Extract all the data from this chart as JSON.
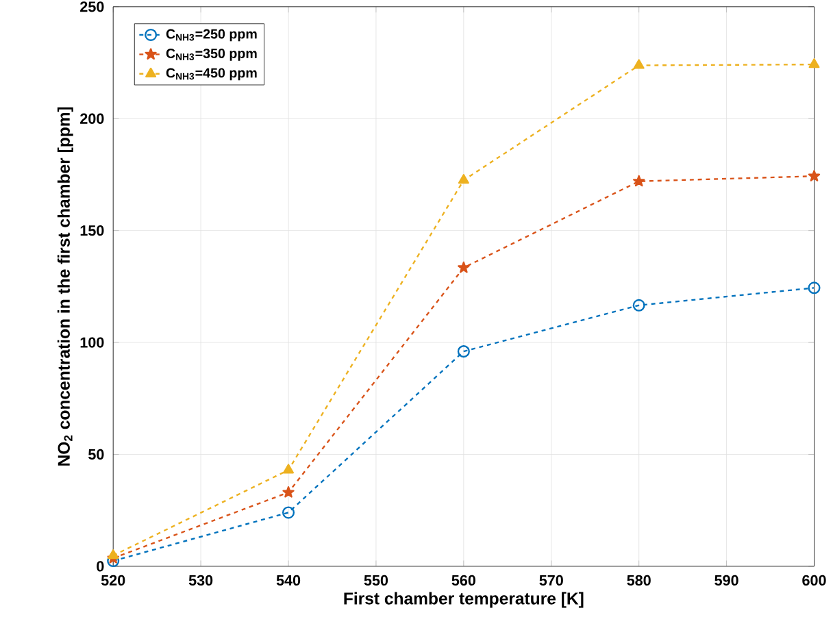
{
  "chart_data": {
    "type": "line",
    "xlabel": "First chamber temperature [K]",
    "ylabel": "NO$_{2}$ concentration in the first chamber [ppm]",
    "x": [
      520,
      540,
      560,
      580,
      600
    ],
    "series": [
      {
        "name": "C$_{NH3}$=250 ppm",
        "color": "#0072bd",
        "marker": "circle",
        "values": [
          2.4,
          24,
          96,
          116.6,
          124.4
        ]
      },
      {
        "name": "C$_{NH3}$=350 ppm",
        "color": "#d95319",
        "marker": "star",
        "values": [
          3.6,
          33,
          133.4,
          172,
          174.3
        ]
      },
      {
        "name": "C$_{NH3}$=450 ppm",
        "color": "#edb120",
        "marker": "triangle",
        "values": [
          4.8,
          43,
          172.5,
          223.8,
          224.2
        ]
      }
    ],
    "xlim": [
      520,
      600
    ],
    "xticks": [
      520,
      530,
      540,
      550,
      560,
      570,
      580,
      590,
      600
    ],
    "ylim": [
      0,
      250
    ],
    "yticks": [
      0,
      50,
      100,
      150,
      200,
      250
    ],
    "grid": true,
    "legend": "top left",
    "line_style": "dashed"
  }
}
